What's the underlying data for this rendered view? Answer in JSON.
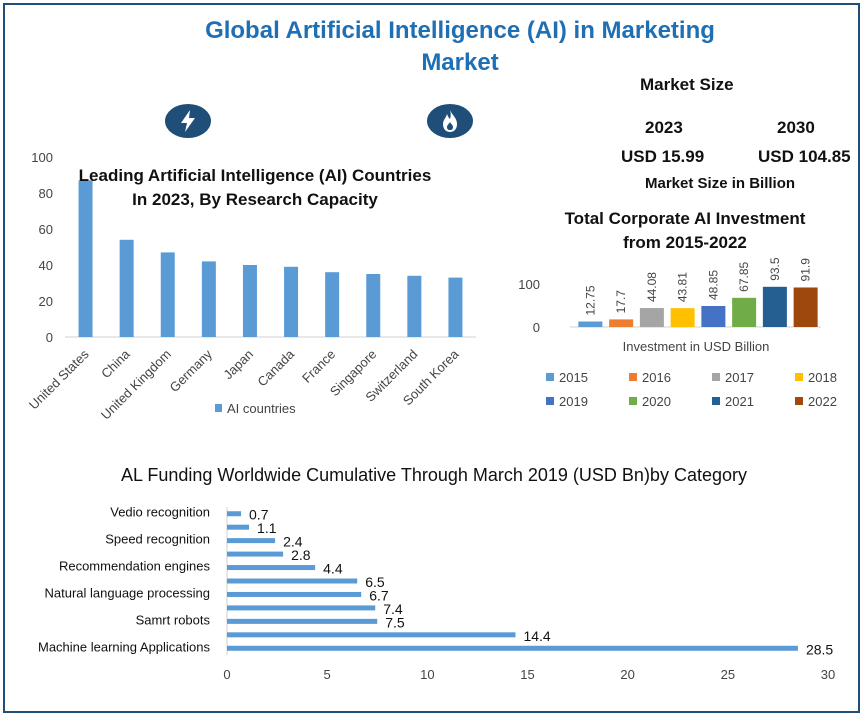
{
  "header": {
    "title_line1": "Global Artificial Intelligence (AI) in Marketing",
    "title_line2": "Market"
  },
  "icons": {
    "left": "lightning-bolt-icon",
    "right": "flame-icon"
  },
  "market_size": {
    "title": "Market Size",
    "year1": "2023",
    "value1": "USD 15.99",
    "year2": "2030",
    "value2": "USD 104.85",
    "unit": "Market Size in Billion"
  },
  "colors": {
    "title_blue": "#1f6fb5",
    "bar_blue": "#5b9bd5",
    "badge": "#1f4e79"
  },
  "chart_data": [
    {
      "type": "bar",
      "title_line1": "Leading Artificial Intelligence (AI) Countries",
      "title_line2": "In 2023, By Research Capacity",
      "categories": [
        "United States",
        "China",
        "United Kingdom",
        "Germany",
        "Japan",
        "Canada",
        "France",
        "Singapore",
        "Switzerland",
        "South Korea"
      ],
      "series": [
        {
          "name": "AI countries",
          "values": [
            87,
            54,
            47,
            42,
            40,
            39,
            36,
            35,
            34,
            33
          ]
        }
      ],
      "ylim": [
        0,
        100
      ],
      "yticks": [
        0,
        20,
        40,
        60,
        80,
        100
      ],
      "legend": "bottom",
      "grid": false
    },
    {
      "type": "bar",
      "title_line1": "Total Corporate AI Investment",
      "title_line2": "from 2015-2022",
      "xlabel": "Investment in USD Billion",
      "categories": [
        "2015",
        "2016",
        "2017",
        "2018",
        "2019",
        "2020",
        "2021",
        "2022"
      ],
      "values": [
        12.75,
        17.7,
        44.08,
        43.81,
        48.85,
        67.85,
        93.5,
        91.9
      ],
      "colors": [
        "#5b9bd5",
        "#ed7d31",
        "#a5a5a5",
        "#ffc000",
        "#4472c4",
        "#70ad47",
        "#255e91",
        "#9e480e"
      ],
      "ylim": [
        0,
        100
      ],
      "yticks": [
        0,
        100
      ],
      "legend": "bottom",
      "grid": false
    },
    {
      "type": "bar",
      "orientation": "horizontal",
      "title": "AL Funding Worldwide Cumulative Through March 2019 (USD Bn)by Category",
      "labels": [
        "Vedio recognition",
        "",
        "Speed recognition",
        "",
        "Recommendation engines",
        "",
        "Natural language processing",
        "",
        "Samrt robots",
        "",
        "Machine learning Applications"
      ],
      "values": [
        0.7,
        1.1,
        2.4,
        2.8,
        4.4,
        6.5,
        6.7,
        7.4,
        7.5,
        14.4,
        28.5
      ],
      "value_labels": [
        "0.7",
        "1.1",
        "2.4",
        "2.8",
        "4.4",
        "6.5",
        "6.7",
        "7.4",
        "7.5",
        "14.4",
        "28.5"
      ],
      "xlim": [
        0,
        30
      ],
      "xticks": [
        0,
        5,
        10,
        15,
        20,
        25,
        30
      ],
      "grid": false
    }
  ]
}
